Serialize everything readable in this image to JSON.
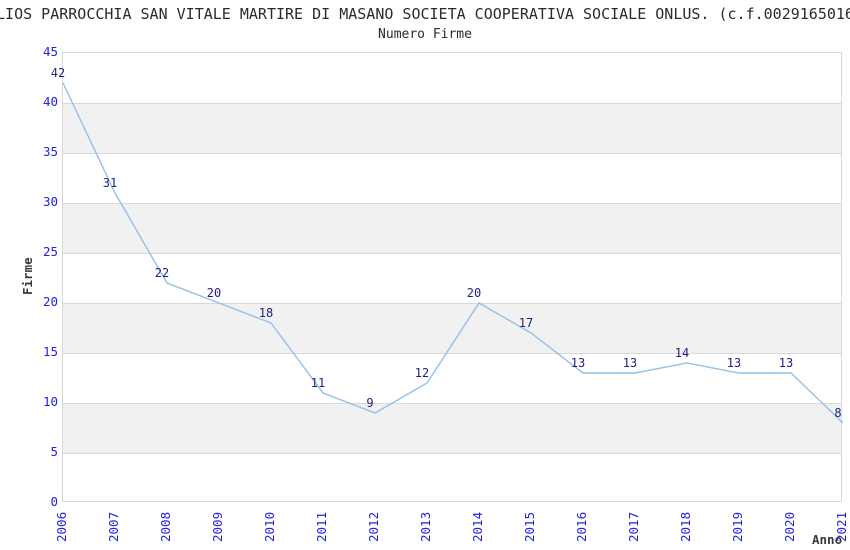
{
  "chart_data": {
    "type": "line",
    "title": "LIOS PARROCCHIA SAN VITALE MARTIRE DI MASANO SOCIETA COOPERATIVA SOCIALE ONLUS. (c.f.0029165016",
    "subtitle": "Numero Firme",
    "xlabel": "Anno",
    "ylabel": "Firme",
    "categories": [
      "2006",
      "2007",
      "2008",
      "2009",
      "2010",
      "2011",
      "2012",
      "2013",
      "2014",
      "2015",
      "2016",
      "2017",
      "2018",
      "2019",
      "2020",
      "2021"
    ],
    "values": [
      42,
      31,
      22,
      20,
      18,
      11,
      9,
      12,
      20,
      17,
      13,
      13,
      14,
      13,
      13,
      8
    ],
    "yticks": [
      0,
      5,
      10,
      15,
      20,
      25,
      30,
      35,
      40,
      45
    ],
    "ylim": [
      0,
      45
    ],
    "grid": "horizontal alternating bands, gridline at every tick",
    "legend": "none",
    "colors": {
      "line": "#93c0ea",
      "tick_label": "#2222dd",
      "data_label": "#1f1f80",
      "band_fill": "#f1f1f1",
      "grid_line": "#d8d8d8",
      "heading_text": "#2b2b2b",
      "axis_title_text": "#3a3a3a",
      "background": "#ffffff"
    }
  }
}
